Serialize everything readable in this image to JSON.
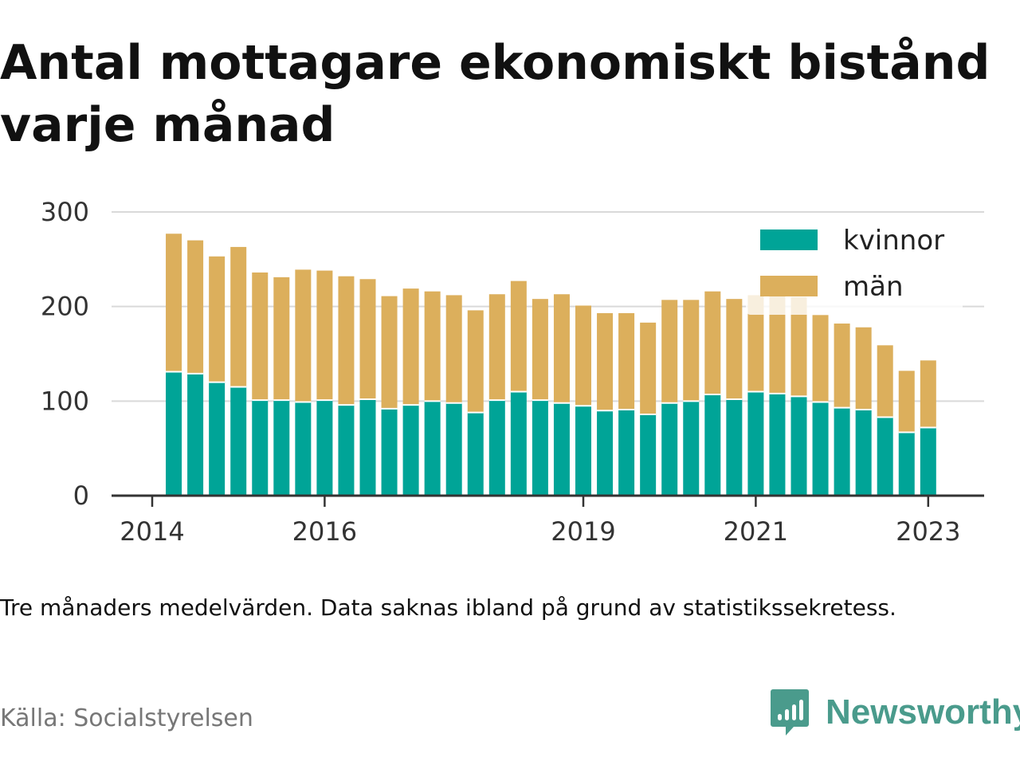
{
  "chart_data": {
    "type": "bar",
    "stacked": true,
    "title": "Antal mottagare ekonomiskt bistånd varje månad",
    "note": "Tre månaders medelvärden. Data saknas ibland på grund av statistikssekretess.",
    "source": "Källa: Socialstyrelsen",
    "brand": "Newsworthy",
    "xlabel": "",
    "ylabel": "",
    "ylim": [
      0,
      300
    ],
    "yticks": [
      0,
      100,
      200,
      300
    ],
    "xticks": [
      {
        "label": "2014",
        "t": 0
      },
      {
        "label": "2016",
        "t": 8
      },
      {
        "label": "2019",
        "t": 20
      },
      {
        "label": "2021",
        "t": 28
      },
      {
        "label": "2023",
        "t": 36
      }
    ],
    "bar_t": [
      1,
      2,
      3,
      4,
      5,
      6,
      7,
      8,
      9,
      10,
      11,
      12,
      13,
      14,
      15,
      16,
      17,
      18,
      19,
      20,
      21,
      22,
      23,
      24,
      25,
      26,
      27,
      28,
      29,
      30,
      31,
      32,
      33,
      34,
      35,
      36
    ],
    "legend_position": "top-right",
    "grid": true,
    "series": [
      {
        "name": "kvinnor",
        "color": "#00a497",
        "values": [
          131,
          129,
          120,
          115,
          101,
          101,
          99,
          101,
          96,
          102,
          92,
          96,
          100,
          98,
          88,
          101,
          110,
          101,
          98,
          95,
          90,
          91,
          86,
          98,
          100,
          107,
          102,
          110,
          108,
          105,
          99,
          93,
          91,
          83,
          67,
          72
        ]
      },
      {
        "name": "män",
        "color": "#dcaf5c",
        "values": [
          146,
          141,
          133,
          148,
          135,
          130,
          140,
          137,
          136,
          127,
          119,
          123,
          116,
          114,
          108,
          112,
          117,
          107,
          115,
          106,
          103,
          102,
          97,
          109,
          107,
          109,
          106,
          102,
          103,
          105,
          92,
          89,
          87,
          76,
          65,
          71
        ]
      }
    ]
  }
}
